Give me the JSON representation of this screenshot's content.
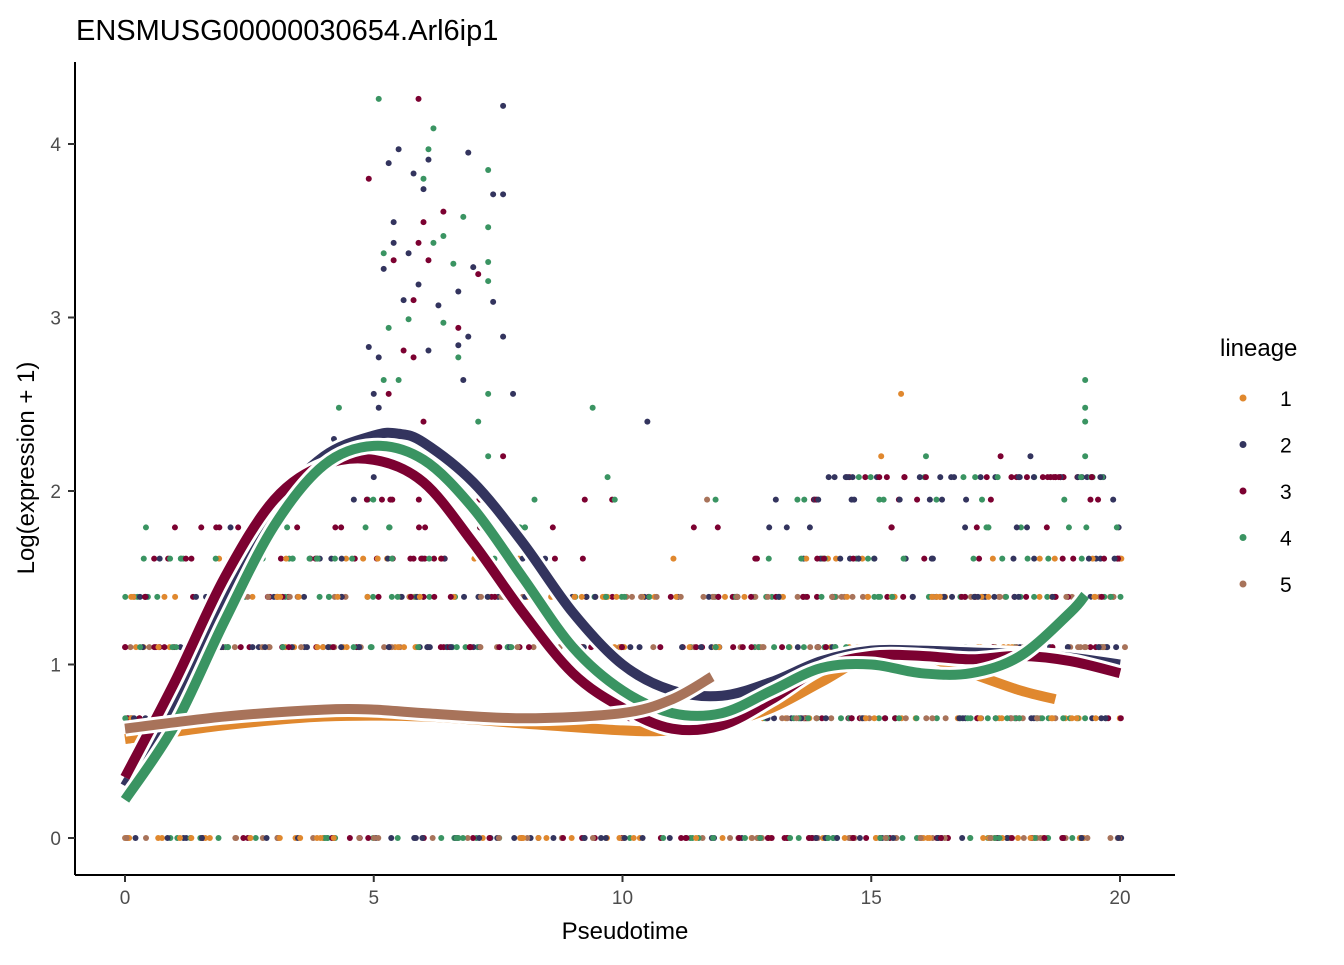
{
  "chart_data": {
    "type": "scatter",
    "title": "ENSMUSG00000030654.Arl6ip1",
    "xlabel": "Pseudotime",
    "ylabel": "Log(expression + 1)",
    "xlim": [
      -1,
      21
    ],
    "ylim": [
      -0.2,
      4.45
    ],
    "xticks": [
      0,
      5,
      10,
      15,
      20
    ],
    "yticks": [
      0,
      1,
      2,
      3,
      4
    ],
    "grid": false,
    "legend": {
      "title": "lineage",
      "placement": "right",
      "entries": [
        "1",
        "2",
        "3",
        "4",
        "5"
      ]
    },
    "colors": {
      "1": "#E0882E",
      "2": "#33345E",
      "3": "#7C0131",
      "4": "#3A9462",
      "5": "#A8735A"
    },
    "point_bands": [
      {
        "level": 0,
        "x": [
          0,
          20.1
        ],
        "lineages": [
          "1",
          "2",
          "3",
          "4",
          "5"
        ]
      },
      {
        "level": 0.69,
        "x": [
          0,
          20.1
        ],
        "lineages": [
          "1",
          "2",
          "3",
          "4",
          "5"
        ]
      },
      {
        "level": 1.1,
        "x": [
          0,
          20.1
        ],
        "lineages": [
          "1",
          "2",
          "3",
          "4",
          "5"
        ]
      },
      {
        "level": 1.39,
        "x": [
          0,
          20.1
        ],
        "lineages": [
          "1",
          "2",
          "3",
          "4",
          "5"
        ]
      },
      {
        "level": 1.61,
        "x": [
          0.2,
          20.1
        ],
        "lineages": [
          "1",
          "2",
          "3",
          "4"
        ]
      },
      {
        "level": 1.79,
        "x": [
          0.3,
          20.1
        ],
        "lineages": [
          "2",
          "3",
          "4"
        ]
      },
      {
        "level": 1.95,
        "x": [
          4,
          20
        ],
        "lineages": [
          "2",
          "3",
          "4"
        ]
      },
      {
        "level": 2.08,
        "x": [
          14,
          19.8
        ],
        "lineages": [
          "2",
          "3",
          "4"
        ]
      }
    ],
    "points": [
      [
        5.1,
        4.26,
        "4"
      ],
      [
        5.9,
        4.26,
        "3"
      ],
      [
        7.6,
        4.22,
        "2"
      ],
      [
        6.2,
        4.09,
        "4"
      ],
      [
        5.5,
        3.97,
        "2"
      ],
      [
        6.1,
        3.97,
        "4"
      ],
      [
        6.9,
        3.95,
        "2"
      ],
      [
        6.1,
        3.91,
        "2"
      ],
      [
        5.3,
        3.89,
        "2"
      ],
      [
        7.3,
        3.85,
        "4"
      ],
      [
        5.8,
        3.83,
        "2"
      ],
      [
        6.0,
        3.8,
        "4"
      ],
      [
        4.9,
        3.8,
        "3"
      ],
      [
        7.4,
        3.71,
        "2"
      ],
      [
        7.6,
        3.71,
        "2"
      ],
      [
        6.0,
        3.74,
        "2"
      ],
      [
        6.4,
        3.61,
        "3"
      ],
      [
        6.8,
        3.58,
        "4"
      ],
      [
        5.4,
        3.55,
        "2"
      ],
      [
        6.0,
        3.55,
        "3"
      ],
      [
        7.3,
        3.52,
        "4"
      ],
      [
        6.4,
        3.47,
        "4"
      ],
      [
        5.4,
        3.43,
        "2"
      ],
      [
        5.9,
        3.43,
        "3"
      ],
      [
        6.2,
        3.43,
        "4"
      ],
      [
        5.7,
        3.37,
        "2"
      ],
      [
        5.2,
        3.37,
        "4"
      ],
      [
        6.1,
        3.33,
        "3"
      ],
      [
        6.6,
        3.31,
        "4"
      ],
      [
        7.0,
        3.29,
        "2"
      ],
      [
        7.3,
        3.32,
        "4"
      ],
      [
        7.1,
        3.25,
        "3"
      ],
      [
        5.4,
        3.33,
        "3"
      ],
      [
        5.2,
        3.28,
        "2"
      ],
      [
        5.9,
        3.19,
        "2"
      ],
      [
        7.3,
        3.21,
        "4"
      ],
      [
        6.7,
        3.15,
        "2"
      ],
      [
        5.6,
        3.1,
        "2"
      ],
      [
        5.8,
        3.1,
        "3"
      ],
      [
        7.4,
        3.09,
        "2"
      ],
      [
        6.3,
        3.07,
        "2"
      ],
      [
        5.7,
        2.99,
        "4"
      ],
      [
        5.3,
        2.94,
        "4"
      ],
      [
        6.4,
        2.97,
        "4"
      ],
      [
        6.7,
        2.94,
        "3"
      ],
      [
        7.6,
        2.89,
        "2"
      ],
      [
        6.9,
        2.89,
        "2"
      ],
      [
        4.9,
        2.83,
        "2"
      ],
      [
        6.1,
        2.81,
        "2"
      ],
      [
        5.6,
        2.81,
        "3"
      ],
      [
        6.7,
        2.84,
        "2"
      ],
      [
        5.1,
        2.77,
        "2"
      ],
      [
        6.7,
        2.77,
        "4"
      ],
      [
        5.2,
        2.64,
        "4"
      ],
      [
        5.5,
        2.64,
        "4"
      ],
      [
        5.8,
        2.77,
        "3"
      ],
      [
        6.8,
        2.64,
        "2"
      ],
      [
        5.0,
        2.56,
        "2"
      ],
      [
        5.3,
        2.56,
        "3"
      ],
      [
        7.3,
        2.56,
        "4"
      ],
      [
        7.8,
        2.56,
        "2"
      ],
      [
        19.3,
        2.64,
        "4"
      ],
      [
        15.6,
        2.56,
        "1"
      ],
      [
        4.3,
        2.48,
        "4"
      ],
      [
        5.1,
        2.48,
        "2"
      ],
      [
        9.4,
        2.48,
        "4"
      ],
      [
        6.0,
        2.4,
        "3"
      ],
      [
        7.1,
        2.4,
        "4"
      ],
      [
        10.5,
        2.4,
        "2"
      ],
      [
        19.3,
        2.48,
        "4"
      ],
      [
        19.3,
        2.4,
        "4"
      ],
      [
        4.2,
        2.3,
        "2"
      ],
      [
        5.6,
        2.3,
        "4"
      ],
      [
        7.3,
        2.2,
        "4"
      ],
      [
        7.6,
        2.2,
        "3"
      ],
      [
        15.2,
        2.2,
        "1"
      ],
      [
        16.1,
        2.2,
        "4"
      ],
      [
        17.6,
        2.2,
        "3"
      ],
      [
        18.2,
        2.2,
        "2"
      ],
      [
        19.3,
        2.2,
        "4"
      ],
      [
        9.7,
        2.08,
        "4"
      ],
      [
        11.7,
        1.95,
        "5"
      ],
      [
        5.0,
        2.08,
        "2"
      ]
    ],
    "series": [
      {
        "name": "1",
        "x": [
          0,
          2,
          4,
          6,
          8,
          10,
          11,
          12,
          13,
          14,
          15,
          16,
          17,
          18,
          18.7
        ],
        "y": [
          0.57,
          0.65,
          0.7,
          0.7,
          0.66,
          0.62,
          0.62,
          0.66,
          0.75,
          0.9,
          1.05,
          1.05,
          0.95,
          0.85,
          0.8
        ]
      },
      {
        "name": "2",
        "x": [
          0,
          1,
          2,
          3,
          4,
          5,
          5.5,
          6,
          7,
          8,
          9,
          10,
          11,
          12,
          13,
          14,
          15,
          16,
          17,
          18,
          19,
          20
        ],
        "y": [
          0.3,
          0.8,
          1.4,
          1.9,
          2.2,
          2.32,
          2.33,
          2.28,
          2.05,
          1.7,
          1.3,
          1.0,
          0.85,
          0.82,
          0.9,
          1.02,
          1.08,
          1.08,
          1.07,
          1.06,
          1.04,
          1.0
        ]
      },
      {
        "name": "3",
        "x": [
          0,
          1,
          2,
          3,
          4,
          5,
          6,
          7,
          8,
          9,
          10,
          11,
          12,
          13,
          14,
          15,
          16,
          17,
          18,
          19,
          20
        ],
        "y": [
          0.35,
          0.9,
          1.5,
          1.95,
          2.15,
          2.18,
          2.05,
          1.7,
          1.3,
          0.95,
          0.75,
          0.63,
          0.65,
          0.8,
          0.98,
          1.05,
          1.05,
          1.03,
          1.05,
          1.02,
          0.95
        ]
      },
      {
        "name": "4",
        "x": [
          0,
          1,
          2,
          3,
          4,
          5,
          6,
          7,
          8,
          9,
          10,
          11,
          12,
          13,
          14,
          15,
          16,
          17,
          18,
          19,
          19.3
        ],
        "y": [
          0.22,
          0.65,
          1.25,
          1.8,
          2.15,
          2.26,
          2.18,
          1.9,
          1.5,
          1.1,
          0.85,
          0.72,
          0.72,
          0.85,
          0.98,
          1.0,
          0.95,
          0.95,
          1.05,
          1.3,
          1.4
        ]
      },
      {
        "name": "5",
        "x": [
          0,
          2,
          4,
          5,
          6,
          8,
          10,
          11,
          11.8
        ],
        "y": [
          0.63,
          0.7,
          0.74,
          0.74,
          0.72,
          0.69,
          0.72,
          0.8,
          0.93
        ]
      }
    ]
  }
}
